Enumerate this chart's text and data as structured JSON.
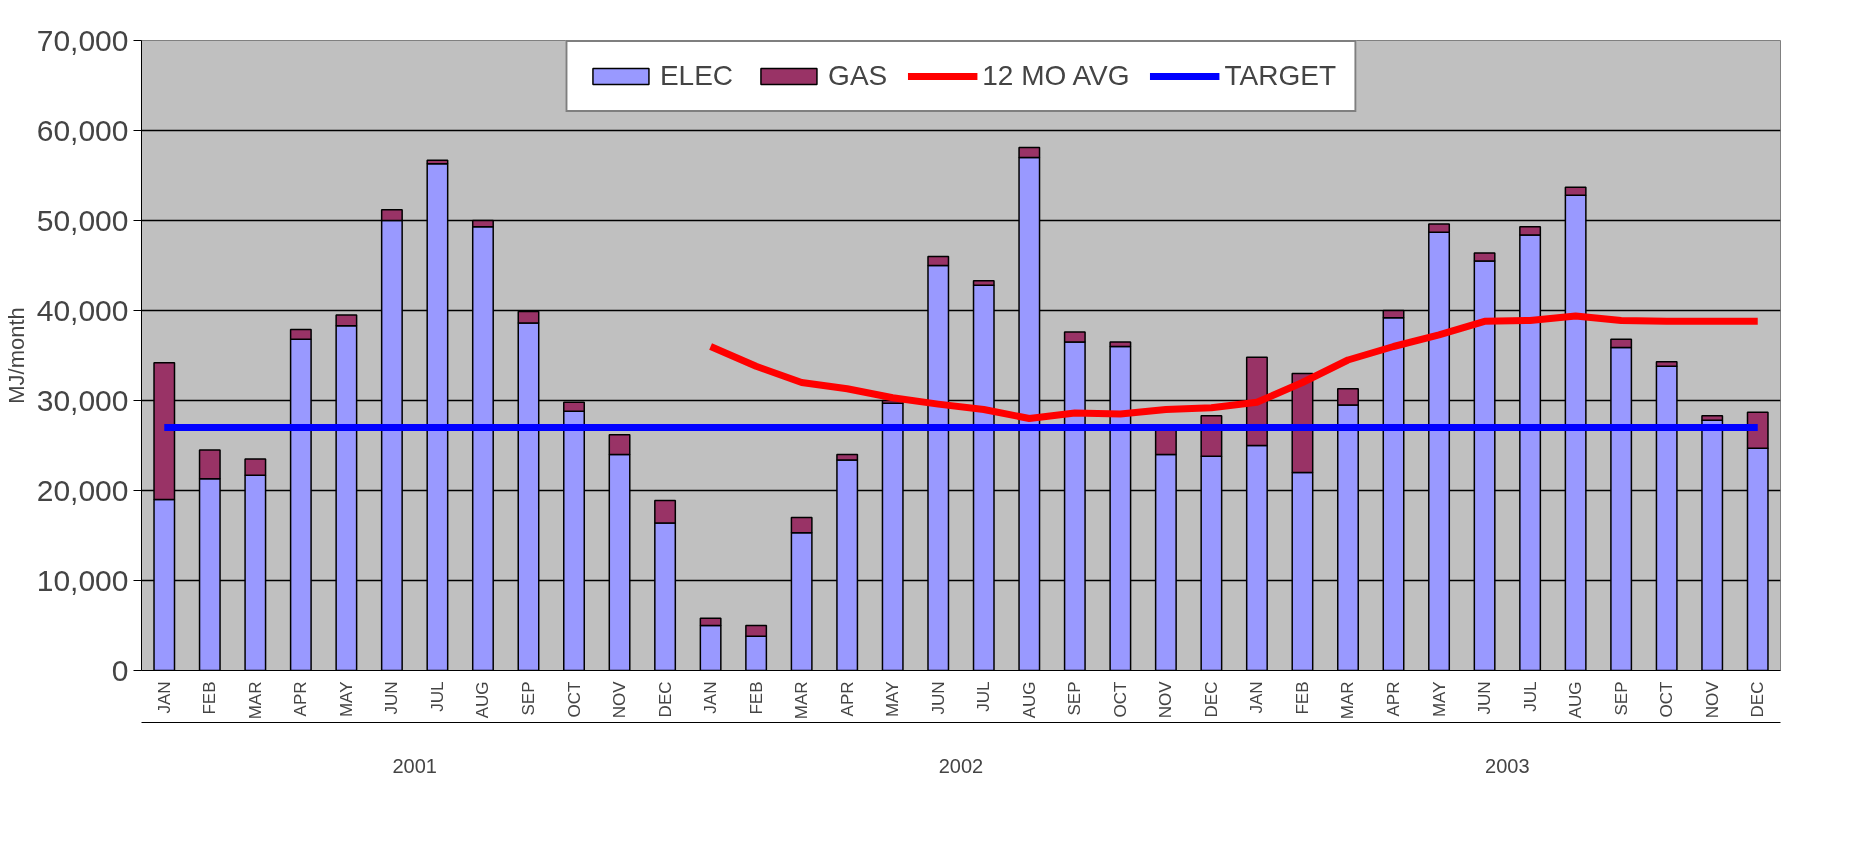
{
  "chart_data": {
    "type": "bar",
    "stacked": true,
    "ylabel": "MJ/month",
    "categories": [
      "JAN",
      "FEB",
      "MAR",
      "APR",
      "MAY",
      "JUN",
      "JUL",
      "AUG",
      "SEP",
      "OCT",
      "NOV",
      "DEC",
      "JAN",
      "FEB",
      "MAR",
      "APR",
      "MAY",
      "JUN",
      "JUL",
      "AUG",
      "SEP",
      "OCT",
      "NOV",
      "DEC",
      "JAN",
      "FEB",
      "MAR",
      "APR",
      "MAY",
      "JUN",
      "JUL",
      "AUG",
      "SEP",
      "OCT",
      "NOV",
      "DEC"
    ],
    "annotations": [
      "2001",
      "2002",
      "2003"
    ],
    "series": [
      {
        "name": "ELEC",
        "color": "#9999ff",
        "values": [
          19000,
          21300,
          21700,
          36800,
          38300,
          50000,
          56300,
          49300,
          38600,
          28800,
          24000,
          16400,
          5000,
          3800,
          15300,
          23400,
          29700,
          45000,
          42800,
          57000,
          36500,
          36000,
          24000,
          23800,
          25000,
          22000,
          29500,
          39200,
          48700,
          45500,
          48400,
          52800,
          35900,
          33800,
          27800,
          24700
        ]
      },
      {
        "name": "GAS",
        "color": "#993366",
        "values": [
          15200,
          3200,
          1800,
          1100,
          1200,
          1200,
          400,
          700,
          1300,
          1000,
          2200,
          2500,
          800,
          1200,
          1700,
          600,
          300,
          1000,
          500,
          1100,
          1100,
          500,
          3000,
          4500,
          9800,
          11000,
          1800,
          800,
          900,
          900,
          900,
          900,
          900,
          500,
          500,
          4000
        ]
      },
      {
        "name": "12 MO AVG",
        "type": "line",
        "color": "#ff0000",
        "values": [
          null,
          null,
          null,
          null,
          null,
          null,
          null,
          null,
          null,
          null,
          null,
          null,
          36000,
          33800,
          32000,
          31300,
          30300,
          29600,
          29000,
          28000,
          28600,
          28500,
          29000,
          29200,
          29800,
          32000,
          34500,
          36000,
          37300,
          38800,
          38900,
          39400,
          38900,
          38800,
          38800,
          38800
        ]
      },
      {
        "name": "TARGET",
        "type": "line",
        "color": "#0000ff",
        "values": [
          27000,
          27000,
          27000,
          27000,
          27000,
          27000,
          27000,
          27000,
          27000,
          27000,
          27000,
          27000,
          27000,
          27000,
          27000,
          27000,
          27000,
          27000,
          27000,
          27000,
          27000,
          27000,
          27000,
          27000,
          27000,
          27000,
          27000,
          27000,
          27000,
          27000,
          27000,
          27000,
          27000,
          27000,
          27000,
          27000
        ]
      }
    ],
    "ylim": [
      0,
      70000
    ],
    "yticks": [
      {
        "value": 0,
        "label": "0"
      },
      {
        "value": 10000,
        "label": "10,000"
      },
      {
        "value": 20000,
        "label": "20,000"
      },
      {
        "value": 30000,
        "label": "30,000"
      },
      {
        "value": 40000,
        "label": "40,000"
      },
      {
        "value": 50000,
        "label": "50,000"
      },
      {
        "value": 60000,
        "label": "60,000"
      },
      {
        "value": 70000,
        "label": "70,000"
      }
    ],
    "grid": "y",
    "legend": "top",
    "marker": "none",
    "line_style": "solid"
  }
}
